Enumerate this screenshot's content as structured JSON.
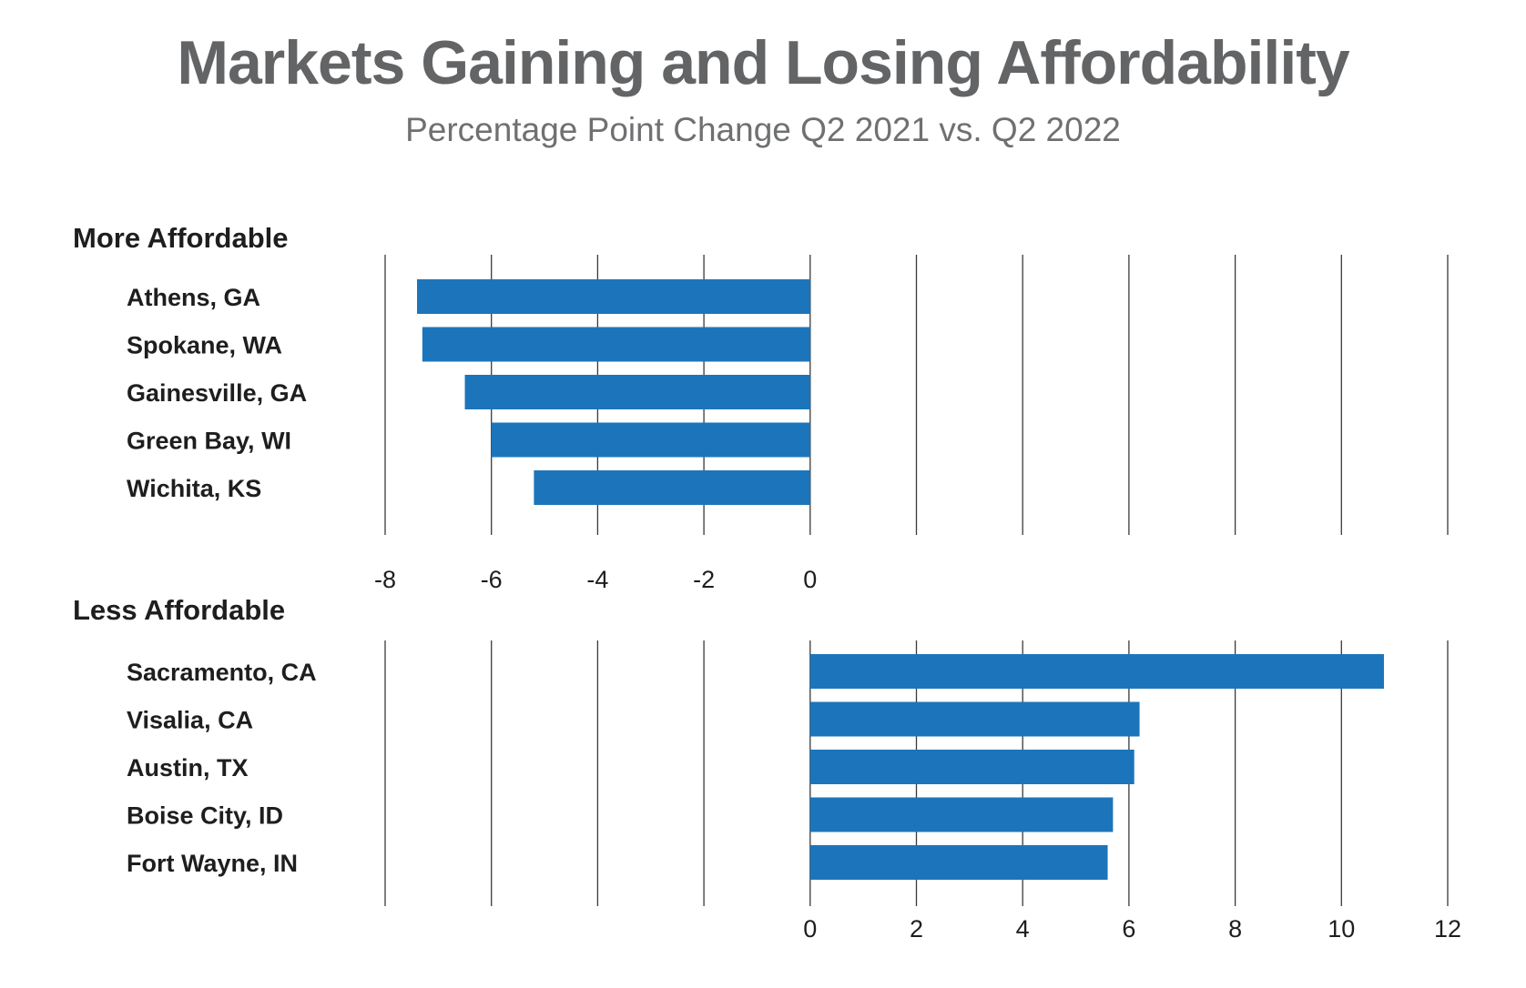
{
  "chart_data": {
    "type": "bar",
    "orientation": "horizontal",
    "title": "Markets Gaining and Losing Affordability",
    "subtitle": "Percentage Point Change Q2 2021 vs. Q2 2022",
    "bar_color": "#1c75bb",
    "xlim": [
      -8,
      12
    ],
    "grid": true,
    "panels": [
      {
        "label": "More Affordable",
        "categories": [
          "Athens, GA",
          "Spokane, WA",
          "Gainesville, GA",
          "Green Bay, WI",
          "Wichita, KS"
        ],
        "values": [
          -7.4,
          -7.3,
          -6.5,
          -6.0,
          -5.2
        ],
        "tick_values": [
          -8,
          -6,
          -4,
          -2,
          0
        ],
        "tick_labels": [
          "-8",
          "-6",
          "-4",
          "-2",
          "0"
        ]
      },
      {
        "label": "Less Affordable",
        "categories": [
          "Sacramento, CA",
          "Visalia, CA",
          "Austin, TX",
          "Boise City, ID",
          "Fort Wayne, IN"
        ],
        "values": [
          10.8,
          6.2,
          6.1,
          5.7,
          5.6
        ],
        "tick_values": [
          0,
          2,
          4,
          6,
          8,
          10,
          12
        ],
        "tick_labels": [
          "0",
          "2",
          "4",
          "6",
          "8",
          "10",
          "12"
        ]
      }
    ]
  }
}
